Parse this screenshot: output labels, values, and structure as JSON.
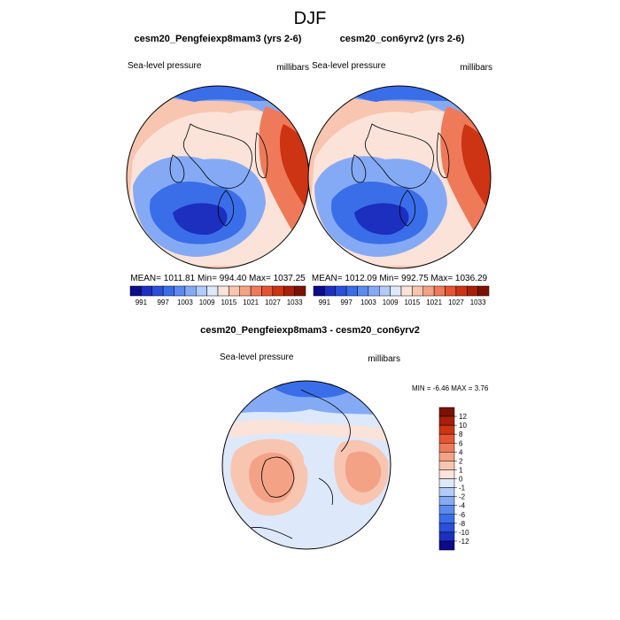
{
  "title": "DJF",
  "palette": {
    "slp": [
      "#0b0b8c",
      "#1c2fbf",
      "#2a4fd8",
      "#3a6ee8",
      "#5b8bf0",
      "#85aaf5",
      "#b2cbf8",
      "#dde8fb",
      "#fbe3d9",
      "#f8c5b0",
      "#f4a286",
      "#ef7a5a",
      "#e55533",
      "#cc3414",
      "#a81f0a",
      "#7c1105"
    ],
    "diff": [
      "#0b0b8c",
      "#1c2fbf",
      "#2a4fd8",
      "#3a6ee8",
      "#5b8bf0",
      "#85aaf5",
      "#b2cbf8",
      "#dde8fb",
      "#fbe3d9",
      "#f8c5b0",
      "#f4a286",
      "#ef7a5a",
      "#e55533",
      "#cc3414",
      "#a81f0a",
      "#7c1105"
    ]
  },
  "chart_data": [
    {
      "type": "heatmap",
      "projection": "north polar stereographic",
      "title": "cesm20_Pengfeiexp8mam3 (yrs 2-6)",
      "left_label": "Sea-level pressure",
      "right_label": "millibars",
      "stats_text": "MEAN= 1011.81  Min= 994.40  Max= 1037.25",
      "stats": {
        "mean": 1011.81,
        "min": 994.4,
        "max": 1037.25
      },
      "colorbar_ticks": [
        "991",
        "997",
        "1003",
        "1009",
        "1015",
        "1021",
        "1027",
        "1033"
      ],
      "colorbar_levels": [
        991,
        994,
        997,
        1000,
        1003,
        1006,
        1009,
        1012,
        1015,
        1018,
        1021,
        1024,
        1027,
        1030,
        1033
      ]
    },
    {
      "type": "heatmap",
      "projection": "north polar stereographic",
      "title": "cesm20_con6yrv2 (yrs 2-6)",
      "left_label": "Sea-level pressure",
      "right_label": "millibars",
      "stats_text": "MEAN= 1012.09  Min= 992.75  Max= 1036.29",
      "stats": {
        "mean": 1012.09,
        "min": 992.75,
        "max": 1036.29
      },
      "colorbar_ticks": [
        "991",
        "997",
        "1003",
        "1009",
        "1015",
        "1021",
        "1027",
        "1033"
      ],
      "colorbar_levels": [
        991,
        994,
        997,
        1000,
        1003,
        1006,
        1009,
        1012,
        1015,
        1018,
        1021,
        1024,
        1027,
        1030,
        1033
      ]
    },
    {
      "type": "heatmap",
      "projection": "north polar stereographic",
      "title": "cesm20_Pengfeiexp8mam3 - cesm20_con6yrv2",
      "left_label": "Sea-level pressure",
      "right_label": "millibars",
      "stats_text": "MIN =  -6.46 MAX =   3.76",
      "stats": {
        "min": -6.46,
        "max": 3.76
      },
      "colorbar_ticks": [
        "12",
        "10",
        "8",
        "6",
        "4",
        "2",
        "1",
        "0",
        "-1",
        "-2",
        "-4",
        "-6",
        "-8",
        "-10",
        "-12"
      ],
      "colorbar_orientation": "vertical"
    }
  ]
}
